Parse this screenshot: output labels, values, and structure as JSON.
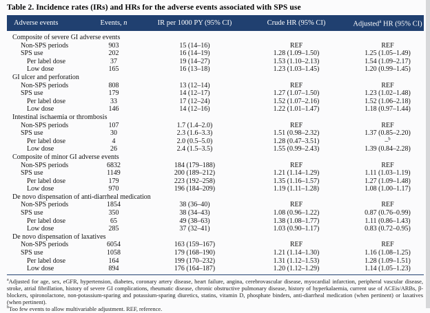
{
  "title": "Table 2. Incidence rates (IRs) and HRs for the adverse events associated with SPS use",
  "colors": {
    "header_bg": "#204070",
    "rule": "#204070",
    "page_bg": "#fbfbfc"
  },
  "header": {
    "columns": [
      "Adverse events",
      "Events, *n*",
      "IR per 1000 PY (95% CI)",
      "Crude HR (95% CI)",
      "Adjusted^a HR (95% CI)"
    ]
  },
  "sections": [
    {
      "name": "Composite of severe GI adverse events",
      "rows": [
        {
          "label": "Non-SPS periods",
          "indent": 1,
          "events": "903",
          "ir": "15 (14–16)",
          "crude": "REF",
          "adjusted": "REF"
        },
        {
          "label": "SPS use",
          "indent": 1,
          "events": "202",
          "ir": "16 (14–19)",
          "crude": "1.28 (1.09–1.50)",
          "adjusted": "1.25 (1.05–1.49)"
        },
        {
          "label": "Per label dose",
          "indent": 2,
          "events": "37",
          "ir": "19 (14–27)",
          "crude": "1.53 (1.10–2.13)",
          "adjusted": "1.54 (1.09–2.17)"
        },
        {
          "label": "Low dose",
          "indent": 2,
          "events": "165",
          "ir": "16 (13–18)",
          "crude": "1.23 (1.03–1.45)",
          "adjusted": "1.20 (0.99–1.45)"
        }
      ]
    },
    {
      "name": "GI ulcer and perforation",
      "rows": [
        {
          "label": "Non-SPS periods",
          "indent": 1,
          "events": "808",
          "ir": "13 (12–14)",
          "crude": "REF",
          "adjusted": "REF"
        },
        {
          "label": "SPS use",
          "indent": 1,
          "events": "179",
          "ir": "14 (12–17)",
          "crude": "1.27 (1.07–1.50)",
          "adjusted": "1.23 (1.02–1.48)"
        },
        {
          "label": "Per label dose",
          "indent": 2,
          "events": "33",
          "ir": "17 (12–24)",
          "crude": "1.52 (1.07–2.16)",
          "adjusted": "1.52 (1.06–2.18)"
        },
        {
          "label": "Low dose",
          "indent": 2,
          "events": "146",
          "ir": "14 (12–16)",
          "crude": "1.22 (1.01–1.47)",
          "adjusted": "1.18 (0.97–1.44)"
        }
      ]
    },
    {
      "name": "Intestinal ischaemia or thrombosis",
      "rows": [
        {
          "label": "Non-SPS periods",
          "indent": 1,
          "events": "107",
          "ir": "1.7 (1.4–2.0)",
          "crude": "REF",
          "adjusted": "REF"
        },
        {
          "label": "SPS use",
          "indent": 1,
          "events": "30",
          "ir": "2.3 (1.6–3.3)",
          "crude": "1.51 (0.98–2.32)",
          "adjusted": "1.37 (0.85–2.20)"
        },
        {
          "label": "Per label dose",
          "indent": 2,
          "events": "4",
          "ir": "2.0 (0.5–5.0)",
          "crude": "1.28 (0.47–3.51)",
          "adjusted": "–^b"
        },
        {
          "label": "Low dose",
          "indent": 2,
          "events": "26",
          "ir": "2.4 (1.5–3.5)",
          "crude": "1.55 (0.99–2.43)",
          "adjusted": "1.39 (0.84–2.28)"
        }
      ]
    },
    {
      "name": "Composite of minor GI adverse events",
      "rows": [
        {
          "label": "Non-SPS periods",
          "indent": 1,
          "events": "6832",
          "ir": "184 (179–188)",
          "crude": "REF",
          "adjusted": "REF"
        },
        {
          "label": "SPS use",
          "indent": 1,
          "events": "1149",
          "ir": "200 (189–212)",
          "crude": "1.21 (1.14–1.29)",
          "adjusted": "1.11 (1.03–1.19)"
        },
        {
          "label": "Per label dose",
          "indent": 2,
          "events": "179",
          "ir": "223 (192–258)",
          "crude": "1.35 (1.16–1.57)",
          "adjusted": "1.27 (1.09–1.48)"
        },
        {
          "label": "Low dose",
          "indent": 2,
          "events": "970",
          "ir": "196 (184–209)",
          "crude": "1.19 (1.11–1.28)",
          "adjusted": "1.08 (1.00–1.17)"
        }
      ]
    },
    {
      "name": "De novo dispensation of anti-diarrheal medication",
      "rows": [
        {
          "label": "Non-SPS periods",
          "indent": 1,
          "events": "1854",
          "ir": "38 (36–40)",
          "crude": "REF",
          "adjusted": "REF"
        },
        {
          "label": "SPS use",
          "indent": 1,
          "events": "350",
          "ir": "38 (34–43)",
          "crude": "1.08 (0.96–1.22)",
          "adjusted": "0.87 (0.76–0.99)"
        },
        {
          "label": "Per label dose",
          "indent": 2,
          "events": "65",
          "ir": "49 (38–63)",
          "crude": "1.38 (1.08–1.77)",
          "adjusted": "1.11 (0.86–1.43)"
        },
        {
          "label": "Low dose",
          "indent": 2,
          "events": "285",
          "ir": "37 (32–41)",
          "crude": "1.03 (0.90–1.17)",
          "adjusted": "0.83 (0.72–0.95)"
        }
      ]
    },
    {
      "name": "De novo dispensation of laxatives",
      "rows": [
        {
          "label": "Non-SPS periods",
          "indent": 1,
          "events": "6054",
          "ir": "163 (159–167)",
          "crude": "REF",
          "adjusted": "REF"
        },
        {
          "label": "SPS use",
          "indent": 1,
          "events": "1058",
          "ir": "179 (168–190)",
          "crude": "1.21 (1.14–1.30)",
          "adjusted": "1.16 (1.08–1.25)"
        },
        {
          "label": "Per label dose",
          "indent": 2,
          "events": "164",
          "ir": "199 (170–232)",
          "crude": "1.31 (1.12–1.53)",
          "adjusted": "1.28 (1.09–1.51)"
        },
        {
          "label": "Low dose",
          "indent": 2,
          "events": "894",
          "ir": "176 (164–187)",
          "crude": "1.20 (1.12–1.29)",
          "adjusted": "1.14 (1.05–1.23)"
        }
      ]
    }
  ],
  "footnotes": {
    "note_a": "^aAdjusted for age, sex, eGFR, hypertension, diabetes, coronary artery disease, heart failure, angina, cerebrovascular disease, myocardial infarction, peripheral vascular disease, stroke, atrial fibrillation, history of severe GI complications, rheumatic disease, chronic obstructive pulmonary disease, history of hyperkalaemia, current use of ACEis/ARBs, β-blockers, spironolactone, non-potassium-sparing and potassium-sparing diuretics, statins, vitamin D, phosphate binders, anti-diarrheal medication (when pertinent) or laxatives (when pertinent).",
    "note_b": "^bToo few events to allow multivariable adjustment. REF, reference."
  }
}
